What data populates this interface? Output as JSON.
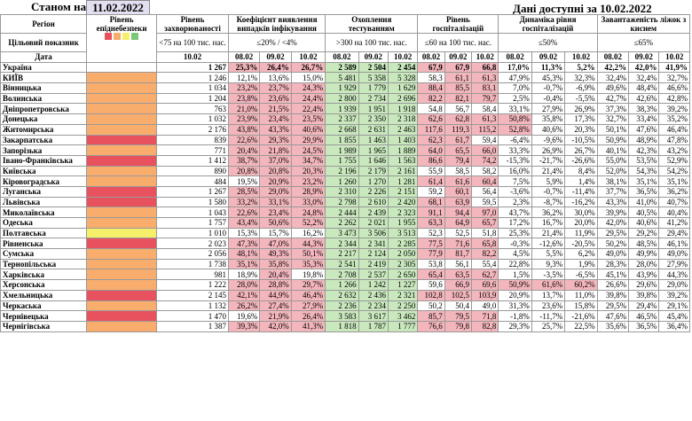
{
  "top": {
    "status_label": "Станом на",
    "status_date": "11.02.2022",
    "data_available": "Дані доступні за 10.02.2022"
  },
  "headers": {
    "region": "Регіон",
    "target": "Цільовий показник",
    "date": "Дата",
    "risk": "Рівень епіднебезпеки",
    "incidence": "Рівень захворюваності",
    "incidence_target": "<75 на 100 тис. нас.",
    "detection": "Коефіцієнт виявлення випадків інфікування",
    "detection_target": "≤20% / <4%",
    "testing": "Охоплення тестуванням",
    "testing_target": ">300 на 100 тис. нас.",
    "hosp": "Рівень госпіталізацій",
    "hosp_target": "≤60 на 100 тис. нас.",
    "dyn": "Динаміка рівня госпіталізацій",
    "dyn_target": "≤50%",
    "oxy": "Завантаженість ліжок з киснем",
    "oxy_target": "≤65%",
    "dates": [
      "08.02",
      "09.02",
      "10.02"
    ],
    "incidence_date": "10.02"
  },
  "legend_colors": [
    "#e8525e",
    "#f9ad6c",
    "#f6ef6a",
    "#7bc67b"
  ],
  "rows": [
    {
      "region": "Україна",
      "risk": "",
      "inc": "1 267",
      "det": [
        "25,3%",
        "26,4%",
        "26,7%"
      ],
      "test": [
        "2 589",
        "2 504",
        "2 454"
      ],
      "hosp": [
        "67,9",
        "67,9",
        "66,8"
      ],
      "dyn": [
        "17,0%",
        "11,3%",
        "5,2%"
      ],
      "oxy": [
        "42,2%",
        "42,0%",
        "41,9%"
      ]
    },
    {
      "region": "КИЇВ",
      "risk": "orange",
      "inc": "1 246",
      "det": [
        "12,1%",
        "13,6%",
        "15,0%"
      ],
      "test": [
        "5 481",
        "5 358",
        "5 328"
      ],
      "hosp": [
        "58,3",
        "61,1",
        "61,3"
      ],
      "dyn": [
        "47,9%",
        "45,3%",
        "32,3%"
      ],
      "oxy": [
        "32,4%",
        "32,4%",
        "32,7%"
      ]
    },
    {
      "region": "Вінницька",
      "risk": "orange",
      "inc": "1 034",
      "det": [
        "23,2%",
        "23,7%",
        "24,3%"
      ],
      "test": [
        "1 929",
        "1 779",
        "1 629"
      ],
      "hosp": [
        "88,4",
        "85,5",
        "83,1"
      ],
      "dyn": [
        "7,0%",
        "-0,7%",
        "-6,9%"
      ],
      "oxy": [
        "49,6%",
        "48,4%",
        "46,6%"
      ]
    },
    {
      "region": "Волинська",
      "risk": "orange",
      "inc": "1 204",
      "det": [
        "23,8%",
        "23,6%",
        "24,4%"
      ],
      "test": [
        "2 800",
        "2 734",
        "2 696"
      ],
      "hosp": [
        "82,2",
        "82,1",
        "79,7"
      ],
      "dyn": [
        "2,5%",
        "-0,4%",
        "-5,5%"
      ],
      "oxy": [
        "42,7%",
        "42,6%",
        "42,8%"
      ]
    },
    {
      "region": "Дніпропетровська",
      "risk": "orange",
      "inc": "763",
      "det": [
        "21,0%",
        "21,5%",
        "22,4%"
      ],
      "test": [
        "1 939",
        "1 951",
        "1 918"
      ],
      "hosp": [
        "54,8",
        "56,7",
        "58,4"
      ],
      "dyn": [
        "33,1%",
        "27,9%",
        "26,9%"
      ],
      "oxy": [
        "37,3%",
        "38,3%",
        "39,2%"
      ]
    },
    {
      "region": "Донецька",
      "risk": "orange",
      "inc": "1 032",
      "det": [
        "23,9%",
        "23,4%",
        "23,5%"
      ],
      "test": [
        "2 337",
        "2 350",
        "2 318"
      ],
      "hosp": [
        "62,6",
        "62,8",
        "61,3"
      ],
      "dyn": [
        "50,8%",
        "35,8%",
        "17,3%"
      ],
      "oxy": [
        "32,7%",
        "33,4%",
        "35,2%"
      ]
    },
    {
      "region": "Житомирська",
      "risk": "orange",
      "inc": "2 176",
      "det": [
        "43,8%",
        "43,3%",
        "40,6%"
      ],
      "test": [
        "2 668",
        "2 631",
        "2 463"
      ],
      "hosp": [
        "117,6",
        "119,3",
        "115,2"
      ],
      "dyn": [
        "52,8%",
        "40,6%",
        "20,3%"
      ],
      "oxy": [
        "50,1%",
        "47,6%",
        "46,4%"
      ]
    },
    {
      "region": "Закарпатська",
      "risk": "red",
      "inc": "839",
      "det": [
        "22,6%",
        "29,3%",
        "29,9%"
      ],
      "test": [
        "1 855",
        "1 463",
        "1 403"
      ],
      "hosp": [
        "62,3",
        "61,7",
        "59,4"
      ],
      "dyn": [
        "-6,4%",
        "-9,6%",
        "-10,5%"
      ],
      "oxy": [
        "50,9%",
        "48,9%",
        "47,8%"
      ]
    },
    {
      "region": "Запорізька",
      "risk": "orange",
      "inc": "771",
      "det": [
        "20,4%",
        "21,8%",
        "24,5%"
      ],
      "test": [
        "1 989",
        "1 965",
        "1 889"
      ],
      "hosp": [
        "64,0",
        "65,5",
        "66,0"
      ],
      "dyn": [
        "33,3%",
        "26,9%",
        "26,7%"
      ],
      "oxy": [
        "40,1%",
        "42,3%",
        "43,2%"
      ]
    },
    {
      "region": "Івано-Франківська",
      "risk": "red",
      "inc": "1 412",
      "det": [
        "38,7%",
        "37,0%",
        "34,7%"
      ],
      "test": [
        "1 755",
        "1 646",
        "1 563"
      ],
      "hosp": [
        "86,6",
        "79,4",
        "74,2"
      ],
      "dyn": [
        "-15,3%",
        "-21,7%",
        "-26,6%"
      ],
      "oxy": [
        "55,0%",
        "53,5%",
        "52,9%"
      ]
    },
    {
      "region": "Київська",
      "risk": "orange",
      "inc": "890",
      "det": [
        "20,8%",
        "20,8%",
        "20,3%"
      ],
      "test": [
        "2 196",
        "2 179",
        "2 161"
      ],
      "hosp": [
        "55,9",
        "58,5",
        "58,2"
      ],
      "dyn": [
        "16,0%",
        "21,4%",
        "8,4%"
      ],
      "oxy": [
        "52,0%",
        "54,3%",
        "54,2%"
      ]
    },
    {
      "region": "Кіровоградська",
      "risk": "orange",
      "inc": "484",
      "det": [
        "19,5%",
        "20,9%",
        "23,2%"
      ],
      "test": [
        "1 260",
        "1 270",
        "1 281"
      ],
      "hosp": [
        "61,4",
        "61,6",
        "60,4"
      ],
      "dyn": [
        "7,5%",
        "5,9%",
        "1,4%"
      ],
      "oxy": [
        "38,1%",
        "35,1%",
        "35,1%"
      ]
    },
    {
      "region": "Луганська",
      "risk": "red",
      "inc": "1 267",
      "det": [
        "28,5%",
        "29,0%",
        "28,9%"
      ],
      "test": [
        "2 310",
        "2 226",
        "2 151"
      ],
      "hosp": [
        "59,2",
        "60,1",
        "56,4"
      ],
      "dyn": [
        "-3,6%",
        "-0,7%",
        "-11,4%"
      ],
      "oxy": [
        "37,7%",
        "36,5%",
        "36,2%"
      ]
    },
    {
      "region": "Львівська",
      "risk": "red",
      "inc": "1 580",
      "det": [
        "33,2%",
        "33,1%",
        "33,0%"
      ],
      "test": [
        "2 798",
        "2 610",
        "2 420"
      ],
      "hosp": [
        "68,1",
        "63,9",
        "59,5"
      ],
      "dyn": [
        "2,3%",
        "-8,7%",
        "-16,2%"
      ],
      "oxy": [
        "43,3%",
        "41,0%",
        "40,7%"
      ]
    },
    {
      "region": "Миколаївська",
      "risk": "orange",
      "inc": "1 043",
      "det": [
        "22,6%",
        "23,4%",
        "24,8%"
      ],
      "test": [
        "2 444",
        "2 439",
        "2 323"
      ],
      "hosp": [
        "91,1",
        "94,4",
        "97,0"
      ],
      "dyn": [
        "43,7%",
        "36,2%",
        "30,0%"
      ],
      "oxy": [
        "39,9%",
        "40,5%",
        "40,4%"
      ]
    },
    {
      "region": "Одеська",
      "risk": "orange",
      "inc": "1 757",
      "det": [
        "43,4%",
        "50,6%",
        "52,2%"
      ],
      "test": [
        "2 262",
        "2 021",
        "1 955"
      ],
      "hosp": [
        "63,3",
        "64,9",
        "65,7"
      ],
      "dyn": [
        "17,2%",
        "16,7%",
        "20,0%"
      ],
      "oxy": [
        "42,0%",
        "40,6%",
        "41,2%"
      ]
    },
    {
      "region": "Полтавська",
      "risk": "yellow",
      "inc": "1 010",
      "det": [
        "15,3%",
        "15,7%",
        "16,2%"
      ],
      "test": [
        "3 473",
        "3 506",
        "3 513"
      ],
      "hosp": [
        "52,3",
        "52,5",
        "51,8"
      ],
      "dyn": [
        "25,3%",
        "21,4%",
        "11,9%"
      ],
      "oxy": [
        "29,5%",
        "29,2%",
        "29,4%"
      ]
    },
    {
      "region": "Рівненська",
      "risk": "red",
      "inc": "2 023",
      "det": [
        "47,3%",
        "47,0%",
        "44,3%"
      ],
      "test": [
        "2 344",
        "2 341",
        "2 285"
      ],
      "hosp": [
        "77,5",
        "71,6",
        "65,8"
      ],
      "dyn": [
        "-0,3%",
        "-12,6%",
        "-20,5%"
      ],
      "oxy": [
        "50,2%",
        "48,5%",
        "46,1%"
      ]
    },
    {
      "region": "Сумська",
      "risk": "orange",
      "inc": "2 056",
      "det": [
        "48,1%",
        "49,3%",
        "50,1%"
      ],
      "test": [
        "2 217",
        "2 124",
        "2 050"
      ],
      "hosp": [
        "77,9",
        "81,7",
        "82,2"
      ],
      "dyn": [
        "4,5%",
        "5,5%",
        "6,2%"
      ],
      "oxy": [
        "49,0%",
        "49,9%",
        "49,0%"
      ]
    },
    {
      "region": "Тернопільська",
      "risk": "orange",
      "inc": "1 738",
      "det": [
        "35,1%",
        "35,8%",
        "35,3%"
      ],
      "test": [
        "2 541",
        "2 419",
        "2 305"
      ],
      "hosp": [
        "53,8",
        "56,1",
        "55,4"
      ],
      "dyn": [
        "22,8%",
        "9,3%",
        "1,9%"
      ],
      "oxy": [
        "28,3%",
        "28,0%",
        "27,9%"
      ]
    },
    {
      "region": "Харківська",
      "risk": "orange",
      "inc": "981",
      "det": [
        "18,9%",
        "20,4%",
        "19,8%"
      ],
      "test": [
        "2 708",
        "2 537",
        "2 650"
      ],
      "hosp": [
        "65,4",
        "63,5",
        "62,7"
      ],
      "dyn": [
        "1,5%",
        "-3,5%",
        "-6,5%"
      ],
      "oxy": [
        "45,1%",
        "43,9%",
        "44,3%"
      ]
    },
    {
      "region": "Херсонська",
      "risk": "orange",
      "inc": "1 222",
      "det": [
        "28,0%",
        "28,8%",
        "29,7%"
      ],
      "test": [
        "1 266",
        "1 242",
        "1 227"
      ],
      "hosp": [
        "59,6",
        "66,9",
        "69,6"
      ],
      "dyn": [
        "50,9%",
        "61,6%",
        "60,2%"
      ],
      "oxy": [
        "26,6%",
        "29,6%",
        "29,0%"
      ]
    },
    {
      "region": "Хмельницька",
      "risk": "red",
      "inc": "2 145",
      "det": [
        "42,1%",
        "44,9%",
        "46,4%"
      ],
      "test": [
        "2 632",
        "2 436",
        "2 321"
      ],
      "hosp": [
        "102,8",
        "102,5",
        "103,9"
      ],
      "dyn": [
        "20,9%",
        "13,7%",
        "11,0%"
      ],
      "oxy": [
        "39,8%",
        "39,8%",
        "39,2%"
      ]
    },
    {
      "region": "Черкаська",
      "risk": "orange",
      "inc": "1 132",
      "det": [
        "26,2%",
        "27,4%",
        "27,9%"
      ],
      "test": [
        "2 236",
        "2 234",
        "2 250"
      ],
      "hosp": [
        "50,2",
        "50,4",
        "49,0"
      ],
      "dyn": [
        "31,3%",
        "23,6%",
        "15,8%"
      ],
      "oxy": [
        "29,5%",
        "29,4%",
        "29,1%"
      ]
    },
    {
      "region": "Чернівецька",
      "risk": "red",
      "inc": "1 470",
      "det": [
        "19,6%",
        "21,9%",
        "26,4%"
      ],
      "test": [
        "3 583",
        "3 617",
        "3 462"
      ],
      "hosp": [
        "85,7",
        "79,5",
        "71,8"
      ],
      "dyn": [
        "-1,8%",
        "-11,7%",
        "-21,6%"
      ],
      "oxy": [
        "47,6%",
        "46,5%",
        "45,4%"
      ]
    },
    {
      "region": "Чернігівська",
      "risk": "orange",
      "inc": "1 387",
      "det": [
        "39,3%",
        "42,0%",
        "41,3%"
      ],
      "test": [
        "1 818",
        "1 787",
        "1 777"
      ],
      "hosp": [
        "76,6",
        "79,8",
        "82,8"
      ],
      "dyn": [
        "29,3%",
        "25,7%",
        "22,5%"
      ],
      "oxy": [
        "35,6%",
        "36,5%",
        "36,4%"
      ]
    }
  ]
}
